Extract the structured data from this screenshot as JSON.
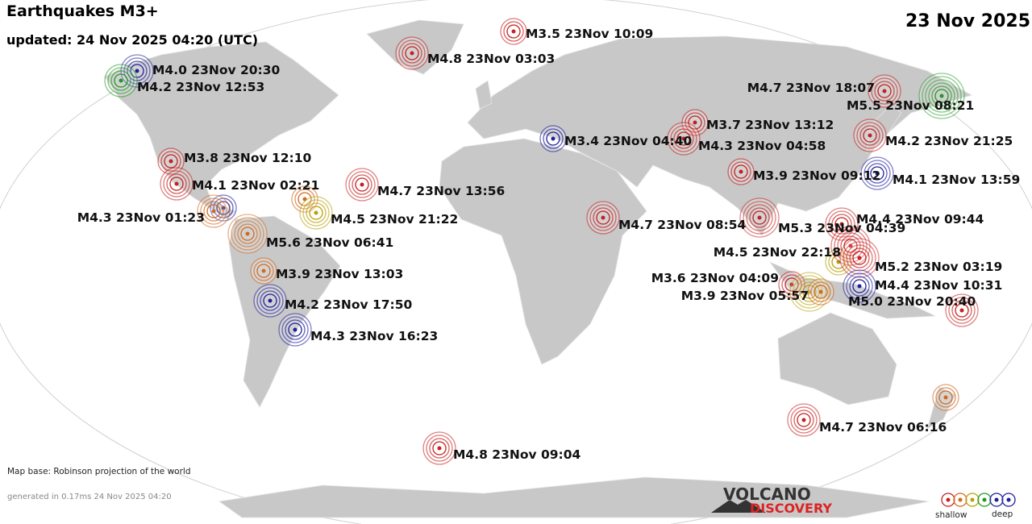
{
  "header": {
    "title": "Earthquakes M3+",
    "updated": "updated: 24 Nov 2025 04:20 (UTC)",
    "date": "23 Nov 2025"
  },
  "quakes": [
    "M4.0 23Nov 20:30",
    "M4.2 23Nov 12:53",
    "M3.5 23Nov 10:09",
    "M4.8 23Nov 03:03",
    "M4.7 23Nov 18:07",
    "M5.5 23Nov 08:21",
    "M3.7 23Nov 13:12",
    "M3.4 23Nov 04:40",
    "M4.3 23Nov 04:58",
    "M4.2 23Nov 21:25",
    "M3.8 23Nov 12:10",
    "M3.9 23Nov 09:12",
    "M4.1 23Nov 13:59",
    "M4.7 23Nov 13:56",
    "M4.1 23Nov 02:21",
    "M4.3 23Nov 01:23",
    "M4.5 23Nov 21:22",
    "M5.6 23Nov 06:41",
    "M4.7 23Nov 08:54",
    "M5.3 23Nov 04:39",
    "M4.4 23Nov 09:44",
    "M4.5 23Nov 22:18",
    "M5.2 23Nov 03:19",
    "M3.9 23Nov 13:03",
    "M3.6 23Nov 04:09",
    "M4.4 23Nov 10:31",
    "M3.9 23Nov 05:57",
    "M4.2 23Nov 17:50",
    "M5.0 23Nov 20:40",
    "M4.3 23Nov 16:23",
    "M4.7 23Nov 06:16",
    "M4.8 23Nov 09:04"
  ],
  "footer": {
    "map_base": "Map base: Robinson projection of the world",
    "generated": "generated in 0.17ms 24 Nov 2025 04:20"
  },
  "logo": {
    "top": "VOLCANO",
    "bottom": "DISCOVERY"
  },
  "legend": {
    "shallow": "shallow",
    "deep": "deep"
  }
}
